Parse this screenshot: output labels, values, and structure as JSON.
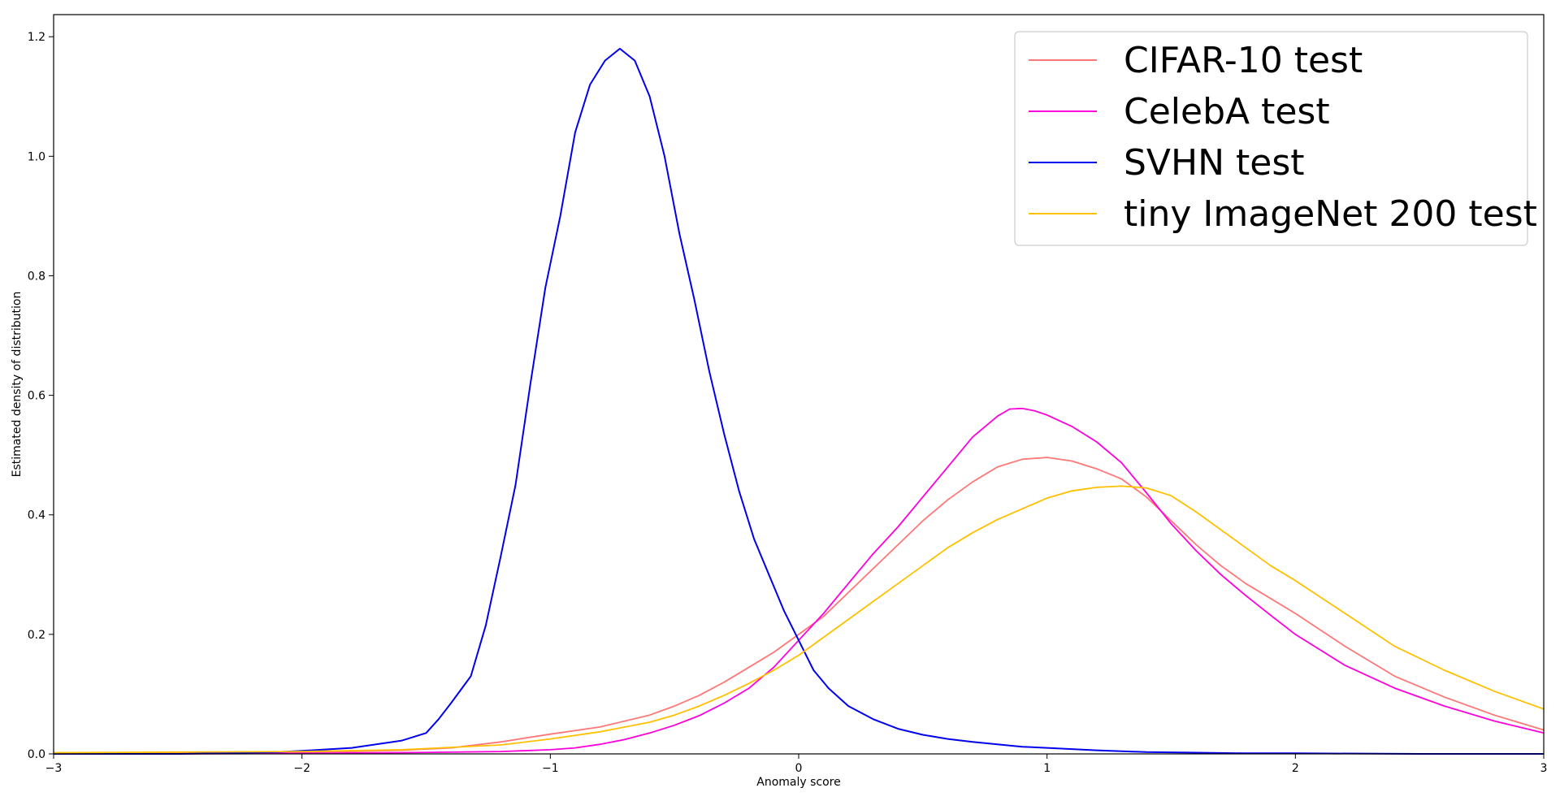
{
  "chart_data": {
    "type": "line",
    "title": "",
    "xlabel": "Anomaly score",
    "ylabel": "Estimated density of distribution",
    "xlim": [
      -3,
      3
    ],
    "ylim": [
      0,
      1.237
    ],
    "xticks": [
      -3,
      -2,
      -1,
      0,
      1,
      2,
      3
    ],
    "xtick_labels": [
      "−3",
      "−2",
      "−1",
      "0",
      "1",
      "2",
      "3"
    ],
    "yticks": [
      0.0,
      0.2,
      0.4,
      0.6,
      0.8,
      1.0,
      1.2
    ],
    "ytick_labels": [
      "0.0",
      "0.2",
      "0.4",
      "0.6",
      "0.8",
      "1.0",
      "1.2"
    ],
    "grid": false,
    "legend_position": "top-right",
    "series": [
      {
        "name": "CIFAR-10 test",
        "color": "#ff7777",
        "x": [
          -3.0,
          -2.5,
          -2.0,
          -1.8,
          -1.6,
          -1.4,
          -1.2,
          -1.0,
          -0.8,
          -0.6,
          -0.5,
          -0.4,
          -0.3,
          -0.2,
          -0.1,
          0.0,
          0.1,
          0.2,
          0.3,
          0.4,
          0.5,
          0.6,
          0.7,
          0.8,
          0.9,
          1.0,
          1.1,
          1.2,
          1.3,
          1.4,
          1.5,
          1.6,
          1.7,
          1.8,
          1.9,
          2.0,
          2.2,
          2.4,
          2.6,
          2.8,
          3.0
        ],
        "y": [
          0.0,
          0.001,
          0.003,
          0.004,
          0.006,
          0.01,
          0.02,
          0.033,
          0.045,
          0.065,
          0.08,
          0.098,
          0.12,
          0.145,
          0.17,
          0.2,
          0.23,
          0.27,
          0.31,
          0.35,
          0.39,
          0.425,
          0.455,
          0.48,
          0.493,
          0.496,
          0.49,
          0.477,
          0.46,
          0.43,
          0.39,
          0.35,
          0.315,
          0.285,
          0.26,
          0.235,
          0.18,
          0.13,
          0.095,
          0.065,
          0.04
        ]
      },
      {
        "name": "CelebA test",
        "color": "#ff00dd",
        "x": [
          -3.0,
          -2.5,
          -2.0,
          -1.6,
          -1.2,
          -1.0,
          -0.9,
          -0.8,
          -0.7,
          -0.6,
          -0.5,
          -0.4,
          -0.3,
          -0.2,
          -0.1,
          0.0,
          0.1,
          0.2,
          0.3,
          0.4,
          0.5,
          0.6,
          0.7,
          0.8,
          0.85,
          0.9,
          0.95,
          1.0,
          1.1,
          1.2,
          1.3,
          1.4,
          1.5,
          1.6,
          1.7,
          1.8,
          1.9,
          2.0,
          2.2,
          2.4,
          2.6,
          2.8,
          3.0
        ],
        "y": [
          0.0,
          0.0,
          0.001,
          0.002,
          0.004,
          0.007,
          0.01,
          0.016,
          0.024,
          0.035,
          0.048,
          0.064,
          0.085,
          0.11,
          0.145,
          0.19,
          0.235,
          0.285,
          0.335,
          0.38,
          0.43,
          0.48,
          0.53,
          0.565,
          0.577,
          0.578,
          0.574,
          0.567,
          0.548,
          0.522,
          0.487,
          0.437,
          0.385,
          0.34,
          0.3,
          0.265,
          0.232,
          0.2,
          0.148,
          0.11,
          0.08,
          0.055,
          0.035
        ]
      },
      {
        "name": "SVHN test",
        "color": "#0000ee",
        "x": [
          -3.0,
          -2.5,
          -2.1,
          -2.0,
          -1.8,
          -1.6,
          -1.5,
          -1.45,
          -1.4,
          -1.32,
          -1.26,
          -1.2,
          -1.14,
          -1.08,
          -1.02,
          -0.96,
          -0.9,
          -0.84,
          -0.78,
          -0.72,
          -0.66,
          -0.6,
          -0.54,
          -0.48,
          -0.42,
          -0.36,
          -0.3,
          -0.24,
          -0.18,
          -0.12,
          -0.06,
          0.0,
          0.06,
          0.12,
          0.2,
          0.3,
          0.4,
          0.5,
          0.6,
          0.7,
          0.8,
          0.9,
          1.0,
          1.2,
          1.4,
          1.6,
          1.8,
          2.0,
          2.5,
          3.0
        ],
        "y": [
          0.0,
          0.0,
          0.003,
          0.005,
          0.01,
          0.022,
          0.035,
          0.058,
          0.085,
          0.13,
          0.215,
          0.33,
          0.45,
          0.62,
          0.78,
          0.9,
          1.04,
          1.12,
          1.16,
          1.18,
          1.16,
          1.1,
          1.0,
          0.87,
          0.76,
          0.64,
          0.535,
          0.44,
          0.36,
          0.3,
          0.24,
          0.19,
          0.14,
          0.11,
          0.08,
          0.058,
          0.042,
          0.032,
          0.025,
          0.02,
          0.016,
          0.012,
          0.01,
          0.006,
          0.003,
          0.002,
          0.001,
          0.001,
          0.0,
          0.0
        ]
      },
      {
        "name": "tiny ImageNet 200 test",
        "color": "#ffc000",
        "x": [
          -3.0,
          -2.5,
          -2.0,
          -1.6,
          -1.2,
          -1.0,
          -0.8,
          -0.6,
          -0.5,
          -0.4,
          -0.3,
          -0.2,
          -0.1,
          0.0,
          0.1,
          0.2,
          0.3,
          0.4,
          0.5,
          0.6,
          0.7,
          0.8,
          0.9,
          1.0,
          1.1,
          1.2,
          1.3,
          1.4,
          1.5,
          1.6,
          1.7,
          1.8,
          1.9,
          2.0,
          2.2,
          2.4,
          2.6,
          2.8,
          3.0
        ],
        "y": [
          0.002,
          0.003,
          0.004,
          0.007,
          0.015,
          0.025,
          0.037,
          0.053,
          0.065,
          0.08,
          0.098,
          0.118,
          0.14,
          0.165,
          0.195,
          0.225,
          0.255,
          0.285,
          0.315,
          0.345,
          0.37,
          0.392,
          0.41,
          0.428,
          0.44,
          0.446,
          0.448,
          0.445,
          0.432,
          0.405,
          0.375,
          0.345,
          0.315,
          0.29,
          0.235,
          0.18,
          0.14,
          0.105,
          0.075
        ]
      }
    ]
  }
}
